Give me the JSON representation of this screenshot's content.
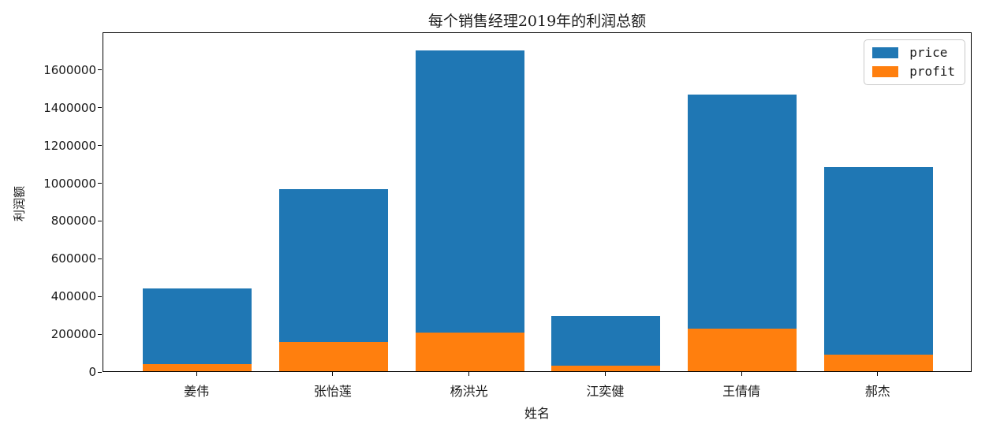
{
  "title": "每个销售经理2019年的利润总额",
  "axes": {
    "xlabel": "姓名",
    "ylabel": "利润额"
  },
  "legend": {
    "entries": [
      {
        "label": "price",
        "color": "#1f77b4"
      },
      {
        "label": "profit",
        "color": "#ff7f0e"
      }
    ]
  },
  "chart_data": {
    "type": "bar",
    "mode": "overlay",
    "title": "每个销售经理2019年的利润总额",
    "xlabel": "姓名",
    "ylabel": "利润额",
    "categories": [
      "姜伟",
      "张怡莲",
      "杨洪光",
      "江奕健",
      "王倩倩",
      "郝杰"
    ],
    "series": [
      {
        "name": "price",
        "color": "#1f77b4",
        "values": [
          440000,
          965000,
          1700000,
          293000,
          1465000,
          1080000
        ]
      },
      {
        "name": "profit",
        "color": "#ff7f0e",
        "values": [
          37000,
          155000,
          205000,
          28000,
          226000,
          88000
        ]
      }
    ],
    "ylim": [
      0,
      1800000
    ],
    "yticks": [
      0,
      200000,
      400000,
      600000,
      800000,
      1000000,
      1200000,
      1400000,
      1600000
    ],
    "ytick_labels": [
      "0",
      "200000",
      "400000",
      "600000",
      "800000",
      "1000000",
      "1200000",
      "1400000",
      "1600000"
    ],
    "bar_width_fraction": 0.8,
    "legend_position": "upper right",
    "grid": false
  }
}
